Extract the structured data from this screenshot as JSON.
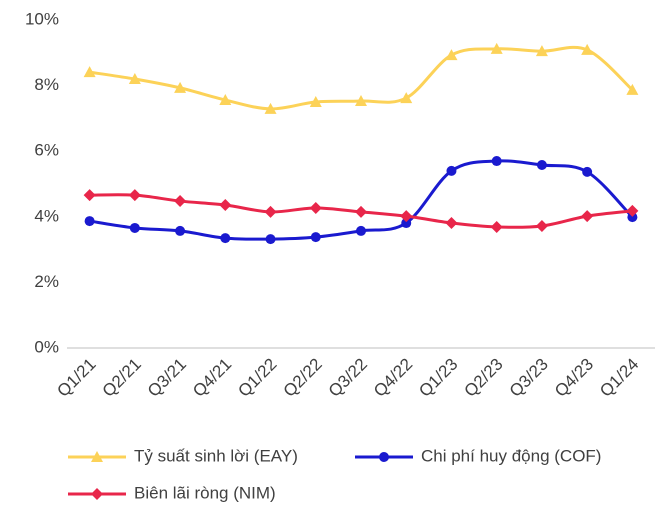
{
  "chart_data": {
    "type": "line",
    "categories": [
      "Q1/21",
      "Q2/21",
      "Q3/21",
      "Q4/21",
      "Q1/22",
      "Q2/22",
      "Q3/22",
      "Q4/22",
      "Q1/23",
      "Q2/23",
      "Q3/23",
      "Q4/23",
      "Q1/24"
    ],
    "series": [
      {
        "name": "Tỷ suất sinh lời (EAY)",
        "color": "#fcd258",
        "marker": "triangle",
        "values": [
          8.41,
          8.2,
          7.93,
          7.56,
          7.29,
          7.5,
          7.53,
          7.62,
          8.93,
          9.12,
          9.05,
          9.09,
          7.87
        ]
      },
      {
        "name": "Chi phí huy động (COF)",
        "color": "#1a1acf",
        "marker": "circle",
        "values": [
          3.87,
          3.66,
          3.57,
          3.35,
          3.32,
          3.38,
          3.57,
          3.81,
          5.4,
          5.7,
          5.58,
          5.37,
          3.99
        ]
      },
      {
        "name": "Biên lãi ròng (NIM)",
        "color": "#e8264a",
        "marker": "diamond",
        "values": [
          4.66,
          4.66,
          4.48,
          4.36,
          4.15,
          4.27,
          4.15,
          4.02,
          3.81,
          3.69,
          3.72,
          4.02,
          4.18
        ]
      }
    ],
    "ylim": [
      0,
      10
    ],
    "yticks": [
      {
        "value": 0,
        "label": "0%"
      },
      {
        "value": 2,
        "label": "2%"
      },
      {
        "value": 4,
        "label": "4%"
      },
      {
        "value": 6,
        "label": "6%"
      },
      {
        "value": 8,
        "label": "8%"
      },
      {
        "value": 10,
        "label": "10%"
      }
    ],
    "grid": false,
    "smooth": true
  }
}
